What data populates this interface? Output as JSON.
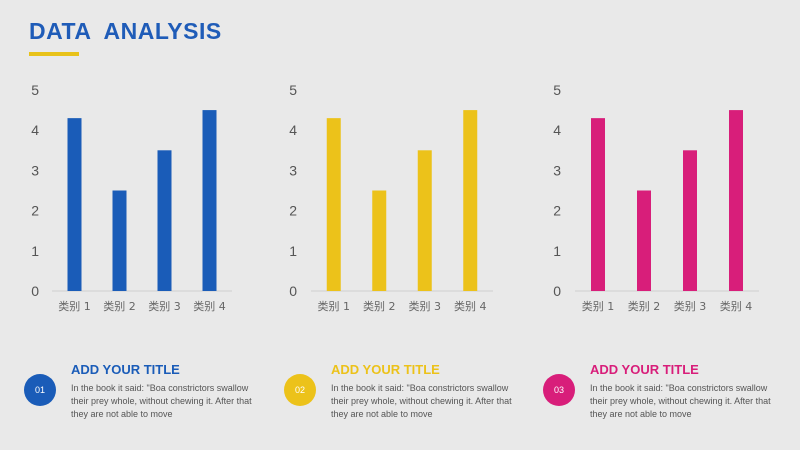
{
  "header": {
    "title": "DATA  ANALYSIS",
    "accent_color": "#e8c21a",
    "title_color": "#1f5cb8"
  },
  "chart_data": [
    {
      "type": "bar",
      "categories": [
        "类别 1",
        "类别 2",
        "类别 3",
        "类别 4"
      ],
      "values": [
        4.3,
        2.5,
        3.5,
        4.5
      ],
      "ylim": [
        0,
        5
      ],
      "yticks": [
        "0",
        "1",
        "2",
        "3",
        "4",
        "5"
      ],
      "color": "#1a5cb8",
      "grid": false
    },
    {
      "type": "bar",
      "categories": [
        "类别 1",
        "类别 2",
        "类别 3",
        "类别 4"
      ],
      "values": [
        4.3,
        2.5,
        3.5,
        4.5
      ],
      "ylim": [
        0,
        5
      ],
      "yticks": [
        "0",
        "1",
        "2",
        "3",
        "4",
        "5"
      ],
      "color": "#ecc21a",
      "grid": false
    },
    {
      "type": "bar",
      "categories": [
        "类别 1",
        "类别 2",
        "类别 3",
        "类别 4"
      ],
      "values": [
        4.3,
        2.5,
        3.5,
        4.5
      ],
      "ylim": [
        0,
        5
      ],
      "yticks": [
        "0",
        "1",
        "2",
        "3",
        "4",
        "5"
      ],
      "color": "#d81e7a",
      "grid": false
    }
  ],
  "cards": [
    {
      "number": "01",
      "title": "ADD YOUR TITLE",
      "description": "In the book it said: \"Boa constrictors swallow their prey whole, without chewing it. After that they are not able to move",
      "color": "#1a5cb8"
    },
    {
      "number": "02",
      "title": "ADD YOUR TITLE",
      "description": "In the book it said: \"Boa constrictors swallow their prey whole, without chewing it. After that they are not able to move",
      "color": "#ecc21a"
    },
    {
      "number": "03",
      "title": "ADD YOUR TITLE",
      "description": "In the book it said: \"Boa constrictors swallow their prey whole, without chewing it. After that they are not able to move",
      "color": "#d81e7a"
    }
  ]
}
